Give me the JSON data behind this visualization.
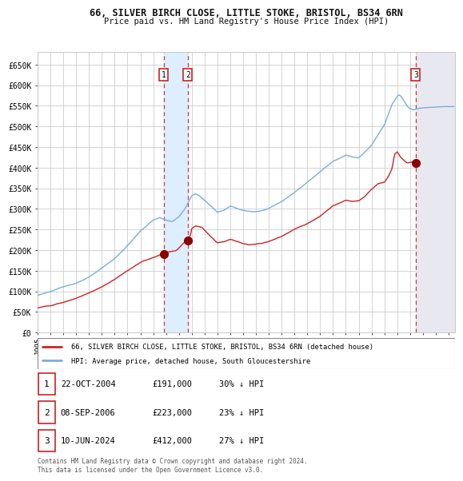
{
  "title": "66, SILVER BIRCH CLOSE, LITTLE STOKE, BRISTOL, BS34 6RN",
  "subtitle": "Price paid vs. HM Land Registry's House Price Index (HPI)",
  "xlim_start": 1995.0,
  "xlim_end": 2027.5,
  "ylim": [
    0,
    680000
  ],
  "yticks": [
    0,
    50000,
    100000,
    150000,
    200000,
    250000,
    300000,
    350000,
    400000,
    450000,
    500000,
    550000,
    600000,
    650000
  ],
  "sale_dates": [
    2004.81,
    2006.69,
    2024.44
  ],
  "sale_prices": [
    191000,
    223000,
    412000
  ],
  "sale_labels": [
    "1",
    "2",
    "3"
  ],
  "legend_line1": "66, SILVER BIRCH CLOSE, LITTLE STOKE, BRISTOL, BS34 6RN (detached house)",
  "legend_line2": "HPI: Average price, detached house, South Gloucestershire",
  "table_entries": [
    {
      "num": "1",
      "date": "22-OCT-2004",
      "price": "£191,000",
      "pct": "30% ↓ HPI"
    },
    {
      "num": "2",
      "date": "08-SEP-2006",
      "price": "£223,000",
      "pct": "23% ↓ HPI"
    },
    {
      "num": "3",
      "date": "10-JUN-2024",
      "price": "£412,000",
      "pct": "27% ↓ HPI"
    }
  ],
  "footer": "Contains HM Land Registry data © Crown copyright and database right 2024.\nThis data is licensed under the Open Government Licence v3.0.",
  "hpi_color": "#7aaddc",
  "price_color": "#cc2222",
  "dot_color": "#880000",
  "shade_color": "#ddeeff",
  "background_color": "#ffffff",
  "grid_color": "#cccccc",
  "hpi_waypoints": [
    [
      1995.0,
      90000
    ],
    [
      1996.0,
      100000
    ],
    [
      1997.0,
      110000
    ],
    [
      1998.0,
      120000
    ],
    [
      1999.0,
      135000
    ],
    [
      2000.0,
      155000
    ],
    [
      2001.0,
      178000
    ],
    [
      2002.0,
      210000
    ],
    [
      2003.0,
      245000
    ],
    [
      2004.0,
      272000
    ],
    [
      2004.5,
      278000
    ],
    [
      2005.0,
      272000
    ],
    [
      2005.5,
      268000
    ],
    [
      2006.0,
      280000
    ],
    [
      2006.5,
      300000
    ],
    [
      2007.0,
      330000
    ],
    [
      2007.3,
      335000
    ],
    [
      2007.8,
      325000
    ],
    [
      2008.5,
      305000
    ],
    [
      2009.0,
      290000
    ],
    [
      2009.5,
      295000
    ],
    [
      2010.0,
      305000
    ],
    [
      2010.5,
      300000
    ],
    [
      2011.0,
      295000
    ],
    [
      2012.0,
      292000
    ],
    [
      2012.5,
      295000
    ],
    [
      2013.0,
      300000
    ],
    [
      2014.0,
      318000
    ],
    [
      2015.0,
      340000
    ],
    [
      2016.0,
      365000
    ],
    [
      2017.0,
      390000
    ],
    [
      2018.0,
      415000
    ],
    [
      2019.0,
      432000
    ],
    [
      2019.5,
      428000
    ],
    [
      2020.0,
      425000
    ],
    [
      2020.5,
      440000
    ],
    [
      2021.0,
      455000
    ],
    [
      2021.5,
      480000
    ],
    [
      2022.0,
      505000
    ],
    [
      2022.3,
      530000
    ],
    [
      2022.6,
      555000
    ],
    [
      2022.9,
      570000
    ],
    [
      2023.1,
      578000
    ],
    [
      2023.3,
      575000
    ],
    [
      2023.5,
      565000
    ],
    [
      2023.8,
      550000
    ],
    [
      2024.0,
      545000
    ],
    [
      2024.3,
      542000
    ],
    [
      2024.5,
      545000
    ],
    [
      2025.0,
      548000
    ],
    [
      2026.0,
      550000
    ],
    [
      2027.0,
      552000
    ]
  ],
  "price_waypoints": [
    [
      1995.0,
      60000
    ],
    [
      1996.0,
      65000
    ],
    [
      1997.0,
      72000
    ],
    [
      1998.0,
      82000
    ],
    [
      1999.0,
      95000
    ],
    [
      2000.0,
      110000
    ],
    [
      2001.0,
      128000
    ],
    [
      2002.0,
      148000
    ],
    [
      2003.0,
      168000
    ],
    [
      2004.5,
      185000
    ],
    [
      2004.81,
      191000
    ],
    [
      2005.2,
      192000
    ],
    [
      2005.8,
      196000
    ],
    [
      2006.69,
      223000
    ],
    [
      2006.9,
      232000
    ],
    [
      2007.0,
      248000
    ],
    [
      2007.3,
      255000
    ],
    [
      2007.8,
      252000
    ],
    [
      2008.0,
      245000
    ],
    [
      2008.5,
      230000
    ],
    [
      2009.0,
      215000
    ],
    [
      2009.5,
      218000
    ],
    [
      2010.0,
      224000
    ],
    [
      2010.5,
      220000
    ],
    [
      2011.0,
      215000
    ],
    [
      2011.5,
      212000
    ],
    [
      2012.0,
      214000
    ],
    [
      2012.5,
      216000
    ],
    [
      2013.0,
      220000
    ],
    [
      2014.0,
      232000
    ],
    [
      2015.0,
      248000
    ],
    [
      2016.0,
      262000
    ],
    [
      2017.0,
      280000
    ],
    [
      2018.0,
      305000
    ],
    [
      2019.0,
      318000
    ],
    [
      2019.5,
      315000
    ],
    [
      2020.0,
      316000
    ],
    [
      2020.5,
      328000
    ],
    [
      2021.0,
      345000
    ],
    [
      2021.5,
      358000
    ],
    [
      2022.0,
      362000
    ],
    [
      2022.3,
      375000
    ],
    [
      2022.6,
      395000
    ],
    [
      2022.8,
      430000
    ],
    [
      2023.0,
      435000
    ],
    [
      2023.2,
      425000
    ],
    [
      2023.5,
      415000
    ],
    [
      2023.8,
      408000
    ],
    [
      2024.0,
      410000
    ],
    [
      2024.44,
      412000
    ],
    [
      2024.6,
      413000
    ]
  ]
}
